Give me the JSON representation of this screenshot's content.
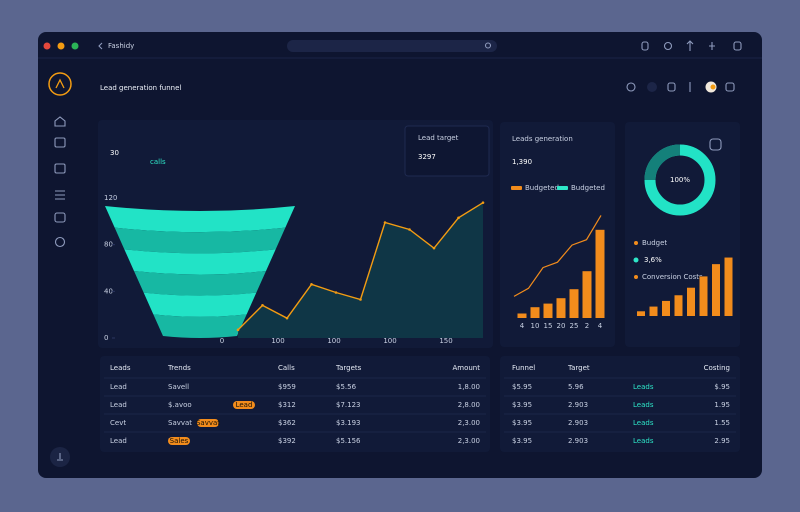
{
  "app": {
    "name": "Fashidy"
  },
  "header": {
    "title": "Lead generation funnel"
  },
  "kpis": {
    "calls": {
      "value": "30",
      "unit": "calls"
    },
    "target": {
      "label": "Lead target",
      "value": "3297"
    },
    "generation": {
      "label": "Leads generation",
      "value": "1,390",
      "legend": [
        "Budgeted",
        "Budgeted"
      ]
    },
    "donut": {
      "label": "100%"
    }
  },
  "main_chart": {
    "type": "line",
    "ylim": [
      0,
      120
    ],
    "yticks": [
      0,
      40,
      80,
      120
    ],
    "x_labels": [
      "0",
      "100",
      "100",
      "100",
      "150"
    ],
    "values": [
      7,
      28,
      17,
      46,
      39,
      33,
      99,
      93,
      77,
      103,
      116
    ],
    "color": "#f39c12"
  },
  "generation_chart": {
    "type": "bar",
    "ylim": [
      0,
      120
    ],
    "categories": [
      "4",
      "10",
      "15",
      "20",
      "25",
      "2",
      "4"
    ],
    "values": [
      5,
      12,
      16,
      22,
      32,
      52,
      98
    ],
    "line_values": [
      24,
      33,
      56,
      62,
      81,
      87,
      114
    ],
    "color": "#f28c1c"
  },
  "budget_chart": {
    "type": "bar",
    "ylim": [
      0,
      70
    ],
    "legend": [
      "Budget",
      "3,6%",
      "Conversion Costs"
    ],
    "values": [
      5,
      10,
      16,
      22,
      30,
      42,
      55,
      62
    ],
    "color": "#f28c1c"
  },
  "table_left": {
    "headers": [
      "Leads",
      "Trends",
      "Calls",
      "Targets",
      "Amount"
    ],
    "rows": [
      [
        "Lead",
        "Savell",
        "$959",
        "$5.56",
        "1,8.00"
      ],
      [
        "Lead",
        "$.avoo",
        "$312",
        "$7.123",
        "2,8.00"
      ],
      [
        "Cevt",
        "Savvat",
        "$362",
        "$3.193",
        "2,3.00"
      ],
      [
        "Lead",
        "Sales",
        "$392",
        "$5.156",
        "2,3.00"
      ]
    ],
    "badges": [
      null,
      "Lead",
      "Savvat",
      "Sales"
    ]
  },
  "table_right": {
    "headers": [
      "Funnel",
      "Target",
      "Costing"
    ],
    "rows": [
      [
        "$5.95",
        "5.96",
        "Leads",
        "$.95"
      ],
      [
        "$3.95",
        "2.903",
        "Leads",
        "1.95"
      ],
      [
        "$3.95",
        "2.903",
        "Leads",
        "1.55"
      ],
      [
        "$3.95",
        "2.903",
        "Leads",
        "2.95"
      ]
    ]
  }
}
